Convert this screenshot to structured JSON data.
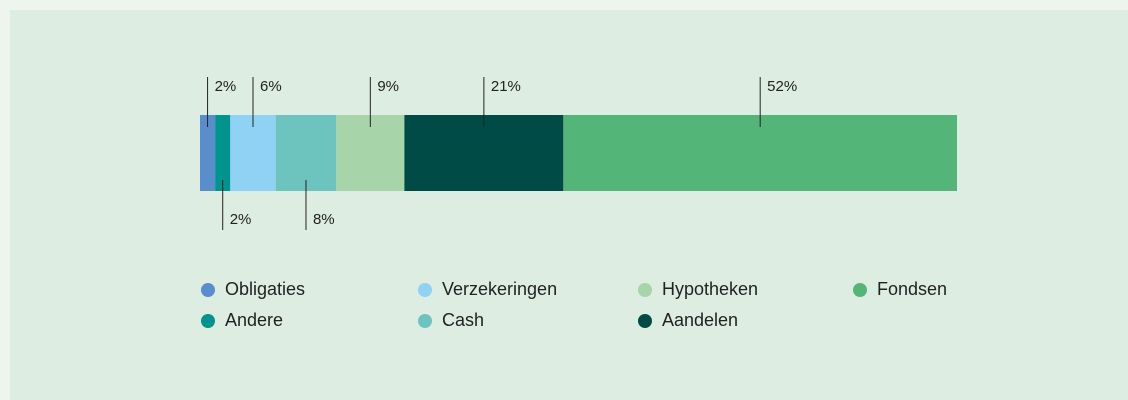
{
  "chart_data": {
    "type": "stacked-bar",
    "series": [
      {
        "name": "Obligaties",
        "color": "#5a8dcc",
        "values": [
          2
        ],
        "value_labels": [
          "2%"
        ]
      },
      {
        "name": "Andere",
        "color": "#00948c",
        "values": [
          2
        ],
        "value_labels": [
          "2%"
        ]
      },
      {
        "name": "Verzekeringen",
        "color": "#8fd2f4",
        "values": [
          6
        ],
        "value_labels": [
          "6%"
        ]
      },
      {
        "name": "Cash",
        "color": "#6dc4bf",
        "values": [
          8
        ],
        "value_labels": [
          "8%"
        ]
      },
      {
        "name": "Hypotheken",
        "color": "#a7d4a8",
        "values": [
          9
        ],
        "value_labels": [
          "9%"
        ]
      },
      {
        "name": "Aandelen",
        "color": "#004b45",
        "values": [
          21
        ],
        "value_labels": [
          "21%"
        ]
      },
      {
        "name": "Fondsen",
        "color": "#54b578",
        "values": [
          52
        ],
        "value_labels": [
          "52%"
        ]
      }
    ]
  }
}
